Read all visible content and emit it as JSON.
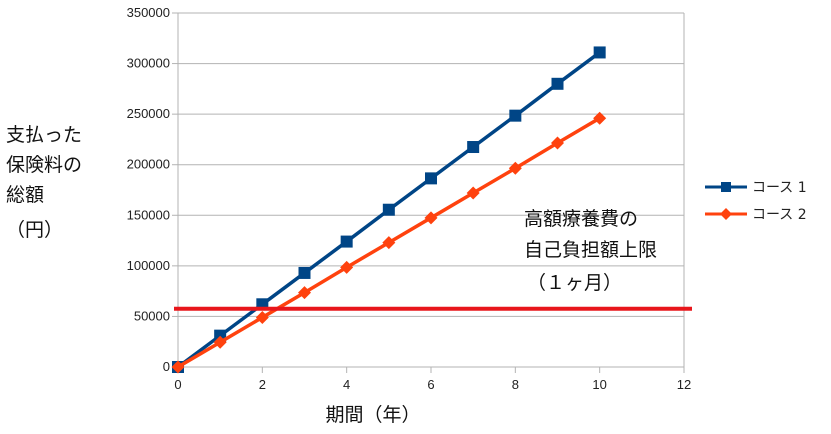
{
  "chart_data": {
    "type": "line",
    "xlabel": "期間（年）",
    "ylabel_lines": [
      "支払った",
      "保険料の",
      "総額",
      "（円）"
    ],
    "xlim": [
      0,
      12
    ],
    "ylim": [
      0,
      350000
    ],
    "xticks": [
      0,
      2,
      4,
      6,
      8,
      10,
      12
    ],
    "yticks": [
      0,
      50000,
      100000,
      150000,
      200000,
      250000,
      300000,
      350000
    ],
    "grid": "horizontal",
    "legend_position": "right",
    "series": [
      {
        "name": "コース 1",
        "color": "#004586",
        "marker": "square",
        "x": [
          0,
          1,
          2,
          3,
          4,
          5,
          6,
          7,
          8,
          9,
          10
        ],
        "values": [
          0,
          31000,
          62000,
          93000,
          124000,
          155500,
          186500,
          217500,
          248500,
          280000,
          311000
        ]
      },
      {
        "name": "コース 2",
        "color": "#ff420e",
        "marker": "diamond",
        "x": [
          0,
          1,
          2,
          3,
          4,
          5,
          6,
          7,
          8,
          9,
          10
        ],
        "values": [
          0,
          24500,
          49000,
          73500,
          98500,
          123000,
          147500,
          172000,
          196500,
          221500,
          246000
        ]
      }
    ],
    "reference_line": {
      "value": 57600,
      "color": "#e8161b"
    },
    "annotation_lines": [
      "高額療養費の",
      "自己負担額上限",
      "（１ヶ月）"
    ]
  }
}
